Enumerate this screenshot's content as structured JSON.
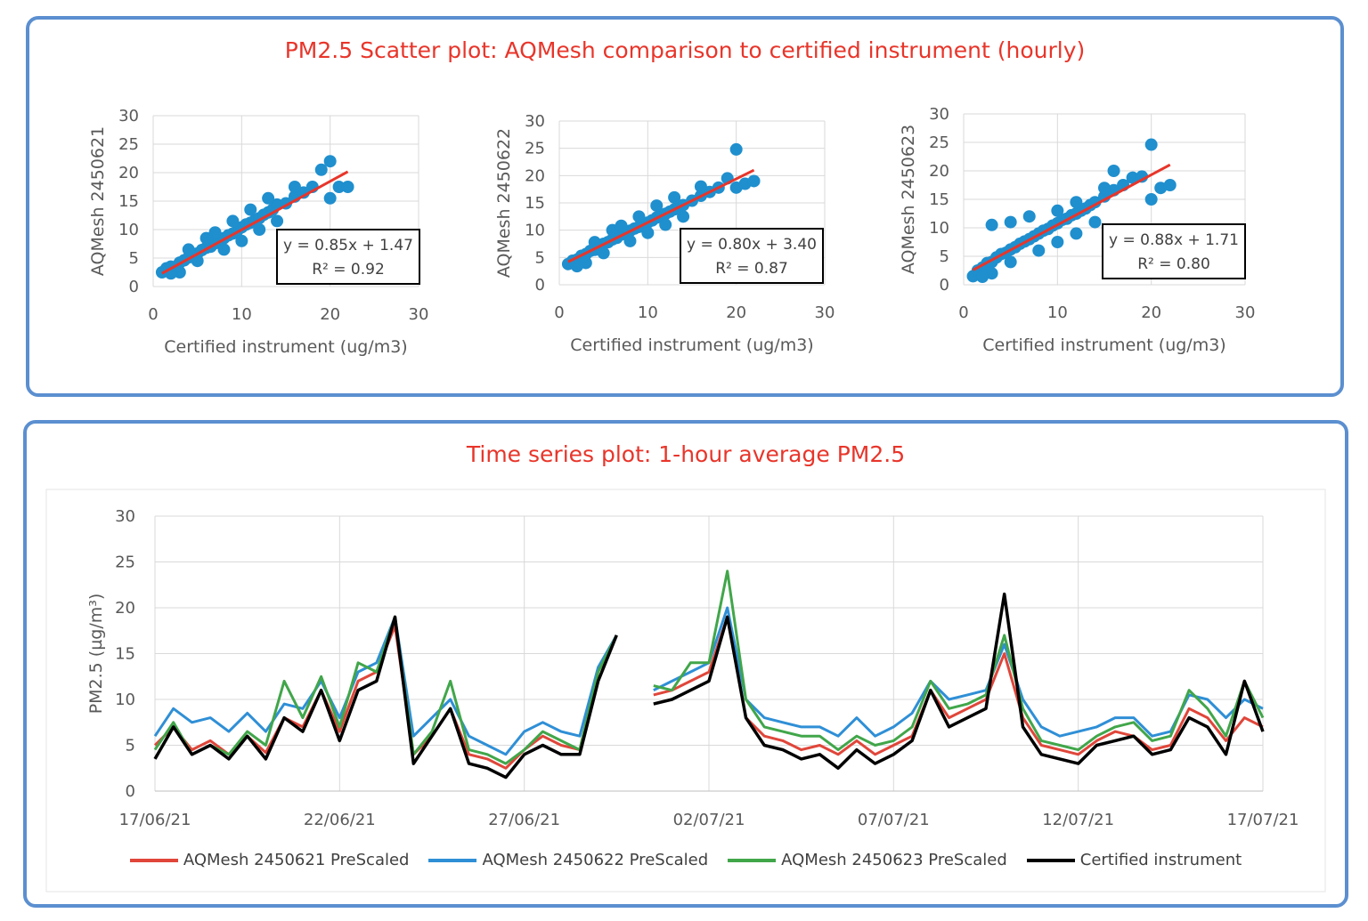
{
  "scatter_panel": {
    "title": "PM2.5 Scatter plot: AQMesh comparison to certified instrument (hourly)"
  },
  "timeseries_panel": {
    "title": "Time series plot: 1-hour average PM2.5"
  },
  "colors": {
    "panel_border": "#5b8fd0",
    "title": "#e8352a",
    "scatter_points": "#1f8fce",
    "trend_line": "#e8352a",
    "series_2450621": "#e0463a",
    "series_2450622": "#2f8fd6",
    "series_2450623": "#41a64a",
    "series_certified": "#000000"
  },
  "chart_data": [
    {
      "type": "scatter",
      "ylabel": "AQMesh 2450621",
      "xlabel": "Certified instrument (ug/m3)",
      "xlim": [
        0,
        30
      ],
      "ylim": [
        0,
        30
      ],
      "xticks": [
        "0",
        "10",
        "20",
        "30"
      ],
      "yticks": [
        "0",
        "5",
        "10",
        "15",
        "20",
        "25",
        "30"
      ],
      "grid": true,
      "trend": {
        "slope": 0.85,
        "intercept": 1.47,
        "x_range": [
          1,
          22
        ]
      },
      "equation": "y = 0.85x + 1.47",
      "r2": "R² = 0.92",
      "points": [
        [
          1,
          2.5
        ],
        [
          1.5,
          3.2
        ],
        [
          2,
          3.5
        ],
        [
          2.5,
          3.4
        ],
        [
          3,
          4.2
        ],
        [
          3.5,
          4.6
        ],
        [
          4,
          5.1
        ],
        [
          4.5,
          5.4
        ],
        [
          5,
          5.8
        ],
        [
          5.5,
          6.4
        ],
        [
          6,
          6.8
        ],
        [
          6.5,
          7.0
        ],
        [
          7,
          7.6
        ],
        [
          7.5,
          8.2
        ],
        [
          8,
          8.5
        ],
        [
          8.5,
          9.0
        ],
        [
          9,
          9.3
        ],
        [
          9.5,
          9.8
        ],
        [
          10,
          10.4
        ],
        [
          10.5,
          10.9
        ],
        [
          11,
          11.2
        ],
        [
          11.5,
          11.6
        ],
        [
          12,
          12.0
        ],
        [
          12.5,
          12.6
        ],
        [
          13,
          13.0
        ],
        [
          13.5,
          13.5
        ],
        [
          14,
          14.4
        ],
        [
          15,
          14.6
        ],
        [
          16,
          15.8
        ],
        [
          17,
          16.5
        ],
        [
          18,
          17.5
        ],
        [
          19,
          20.5
        ],
        [
          20,
          22
        ],
        [
          20,
          15.5
        ],
        [
          21,
          17.5
        ],
        [
          22,
          17.5
        ],
        [
          3,
          2.5
        ],
        [
          5,
          4.5
        ],
        [
          8,
          6.5
        ],
        [
          10,
          8.0
        ],
        [
          12,
          10.0
        ],
        [
          14,
          11.5
        ],
        [
          6,
          8.5
        ],
        [
          9,
          11.5
        ],
        [
          11,
          13.5
        ],
        [
          13,
          15.5
        ],
        [
          4,
          6.5
        ],
        [
          7,
          9.5
        ],
        [
          16,
          17.5
        ],
        [
          2,
          2.3
        ]
      ]
    },
    {
      "type": "scatter",
      "ylabel": "AQMesh 2450622",
      "xlabel": "Certified instrument (ug/m3)",
      "xlim": [
        0,
        30
      ],
      "ylim": [
        0,
        30
      ],
      "xticks": [
        "0",
        "10",
        "20",
        "30"
      ],
      "yticks": [
        "0",
        "5",
        "10",
        "15",
        "20",
        "25",
        "30"
      ],
      "grid": true,
      "trend": {
        "slope": 0.8,
        "intercept": 3.4,
        "x_range": [
          1,
          22
        ]
      },
      "equation": "y = 0.80x + 3.40",
      "r2": "R² = 0.87",
      "points": [
        [
          1,
          3.8
        ],
        [
          1.5,
          4.4
        ],
        [
          2,
          4.6
        ],
        [
          2.5,
          5.3
        ],
        [
          3,
          5.6
        ],
        [
          3.5,
          6.2
        ],
        [
          4,
          6.4
        ],
        [
          4.5,
          7.0
        ],
        [
          5,
          7.5
        ],
        [
          5.5,
          7.8
        ],
        [
          6,
          8.3
        ],
        [
          6.5,
          8.6
        ],
        [
          7,
          9.2
        ],
        [
          7.5,
          9.4
        ],
        [
          8,
          9.9
        ],
        [
          8.5,
          10.3
        ],
        [
          9,
          10.6
        ],
        [
          9.5,
          11.1
        ],
        [
          10,
          11.4
        ],
        [
          10.5,
          11.8
        ],
        [
          11,
          12.3
        ],
        [
          11.5,
          12.6
        ],
        [
          12,
          13.0
        ],
        [
          12.5,
          13.4
        ],
        [
          13,
          13.8
        ],
        [
          13.5,
          14.2
        ],
        [
          14,
          14.6
        ],
        [
          15,
          15.4
        ],
        [
          16,
          16.3
        ],
        [
          17,
          17.0
        ],
        [
          18,
          17.8
        ],
        [
          19,
          19.5
        ],
        [
          20,
          24.8
        ],
        [
          20,
          17.8
        ],
        [
          21,
          18.5
        ],
        [
          22,
          19.0
        ],
        [
          3,
          4.0
        ],
        [
          5,
          5.8
        ],
        [
          8,
          8.0
        ],
        [
          10,
          9.5
        ],
        [
          12,
          11.0
        ],
        [
          14,
          12.5
        ],
        [
          6,
          10.0
        ],
        [
          9,
          12.5
        ],
        [
          11,
          14.5
        ],
        [
          13,
          16.0
        ],
        [
          4,
          7.8
        ],
        [
          7,
          10.8
        ],
        [
          16,
          18.0
        ],
        [
          2,
          3.4
        ]
      ]
    },
    {
      "type": "scatter",
      "ylabel": "AQMesh 2450623",
      "xlabel": "Certified instrument (ug/m3)",
      "xlim": [
        0,
        30
      ],
      "ylim": [
        0,
        30
      ],
      "xticks": [
        "0",
        "10",
        "20",
        "30"
      ],
      "yticks": [
        "0",
        "5",
        "10",
        "15",
        "20",
        "25",
        "30"
      ],
      "grid": true,
      "trend": {
        "slope": 0.88,
        "intercept": 1.71,
        "x_range": [
          1,
          22
        ]
      },
      "equation": "y = 0.88x + 1.71",
      "r2": "R² = 0.80",
      "points": [
        [
          1,
          1.5
        ],
        [
          1.5,
          2.5
        ],
        [
          2,
          3.0
        ],
        [
          2.5,
          3.8
        ],
        [
          3,
          4.0
        ],
        [
          3.5,
          4.8
        ],
        [
          4,
          5.4
        ],
        [
          4.5,
          5.6
        ],
        [
          5,
          6.2
        ],
        [
          5.5,
          6.6
        ],
        [
          6,
          7.2
        ],
        [
          6.5,
          7.6
        ],
        [
          7,
          8.0
        ],
        [
          7.5,
          8.5
        ],
        [
          8,
          9.0
        ],
        [
          8.5,
          9.5
        ],
        [
          9,
          9.8
        ],
        [
          9.5,
          10.4
        ],
        [
          10,
          10.8
        ],
        [
          10.5,
          11.4
        ],
        [
          11,
          11.6
        ],
        [
          11.5,
          12.2
        ],
        [
          12,
          12.5
        ],
        [
          12.5,
          13.0
        ],
        [
          13,
          13.4
        ],
        [
          13.5,
          14.0
        ],
        [
          14,
          14.5
        ],
        [
          15,
          15.5
        ],
        [
          16,
          16.6
        ],
        [
          17,
          17.5
        ],
        [
          18,
          18.8
        ],
        [
          19,
          19.0
        ],
        [
          20,
          24.6
        ],
        [
          20,
          15.0
        ],
        [
          21,
          17.0
        ],
        [
          22,
          17.5
        ],
        [
          3,
          2.0
        ],
        [
          5,
          4.0
        ],
        [
          8,
          6.0
        ],
        [
          10,
          7.5
        ],
        [
          12,
          9.0
        ],
        [
          14,
          11.0
        ],
        [
          3,
          10.5
        ],
        [
          5,
          11.0
        ],
        [
          7,
          12.0
        ],
        [
          10,
          13.0
        ],
        [
          12,
          14.5
        ],
        [
          15,
          17.0
        ],
        [
          16,
          20.0
        ],
        [
          2,
          1.4
        ]
      ]
    },
    {
      "type": "line",
      "ylabel": "PM2.5 (µg/m³)",
      "ylim": [
        0,
        30
      ],
      "yticks": [
        "0",
        "5",
        "10",
        "15",
        "20",
        "25",
        "30"
      ],
      "x_start": "17/06/21",
      "x_end": "17/07/21",
      "xticks": [
        "17/06/21",
        "22/06/21",
        "27/06/21",
        "02/07/21",
        "07/07/21",
        "12/07/21",
        "17/07/21"
      ],
      "x_days": [
        0,
        5,
        10,
        15,
        20,
        25,
        30
      ],
      "grid": true,
      "legend": "bottom",
      "x": [
        0,
        0.5,
        1,
        1.5,
        2,
        2.5,
        3,
        3.5,
        4,
        4.5,
        5,
        5.5,
        6,
        6.5,
        7,
        7.5,
        8,
        8.5,
        9,
        9.5,
        10,
        10.5,
        11,
        11.5,
        12,
        12.5,
        13,
        13.5,
        14,
        14.5,
        15,
        15.5,
        16,
        16.5,
        17,
        17.5,
        18,
        18.5,
        19,
        19.5,
        20,
        20.5,
        21,
        21.5,
        22,
        22.5,
        23,
        23.5,
        24,
        24.5,
        25,
        25.5,
        26,
        26.5,
        27,
        27.5,
        28,
        28.5,
        29,
        29.5,
        30
      ],
      "series": [
        {
          "name": "AQMesh 2450621 PreScaled",
          "values": [
            5,
            7,
            4.5,
            5.5,
            4,
            6,
            4.2,
            8,
            7,
            11,
            6.5,
            12,
            13,
            18,
            4,
            6,
            9,
            4,
            3.5,
            2.5,
            4.5,
            6,
            5,
            4.5,
            13,
            17,
            null,
            10.5,
            11,
            12,
            13,
            19,
            8,
            6,
            5.5,
            4.5,
            5,
            4,
            5.5,
            4,
            5,
            6,
            11,
            8,
            9,
            10,
            15,
            8,
            5,
            4.5,
            4,
            5.5,
            6.5,
            6,
            4.5,
            5,
            9,
            8,
            5.5,
            8,
            7
          ]
        },
        {
          "name": "AQMesh 2450622 PreScaled",
          "values": [
            6,
            9,
            7.5,
            8,
            6.5,
            8.5,
            6.5,
            9.5,
            9,
            12,
            8,
            13,
            14,
            19,
            6,
            8,
            10,
            6,
            5,
            4,
            6.5,
            7.5,
            6.5,
            6,
            13.5,
            17,
            null,
            11,
            12,
            13,
            14,
            20,
            10,
            8,
            7.5,
            7,
            7,
            6,
            8,
            6,
            7,
            8.5,
            12,
            10,
            10.5,
            11,
            16,
            10,
            7,
            6,
            6.5,
            7,
            8,
            8,
            6,
            6.5,
            10.5,
            10,
            8,
            10,
            9
          ]
        },
        {
          "name": "AQMesh 2450623 PreScaled",
          "values": [
            4.5,
            7.5,
            4,
            5,
            4,
            6.5,
            5,
            12,
            8,
            12.5,
            7,
            14,
            13,
            19,
            4,
            6.5,
            12,
            4.5,
            4,
            3,
            4.5,
            6.5,
            5.5,
            4.5,
            13,
            17,
            null,
            11.5,
            11,
            14,
            14,
            24,
            10,
            7,
            6.5,
            6,
            6,
            4.5,
            6,
            5,
            5.5,
            7,
            12,
            9,
            9.5,
            10.5,
            17,
            9,
            5.5,
            5,
            4.5,
            6,
            7,
            7.5,
            5.5,
            6,
            11,
            9,
            6,
            12,
            8
          ]
        },
        {
          "name": "Certified instrument",
          "values": [
            3.5,
            7,
            4,
            5,
            3.5,
            6,
            3.5,
            8,
            6.5,
            11,
            5.5,
            11,
            12,
            19,
            3,
            6,
            9,
            3,
            2.5,
            1.5,
            4,
            5,
            4,
            4,
            12,
            17,
            null,
            9.5,
            10,
            11,
            12,
            19,
            8,
            5,
            4.5,
            3.5,
            4,
            2.5,
            4.5,
            3,
            4,
            5.5,
            11,
            7,
            8,
            9,
            21.5,
            7,
            4,
            3.5,
            3,
            5,
            5.5,
            6,
            4,
            4.5,
            8,
            7,
            4,
            12,
            6.5
          ]
        }
      ]
    }
  ]
}
